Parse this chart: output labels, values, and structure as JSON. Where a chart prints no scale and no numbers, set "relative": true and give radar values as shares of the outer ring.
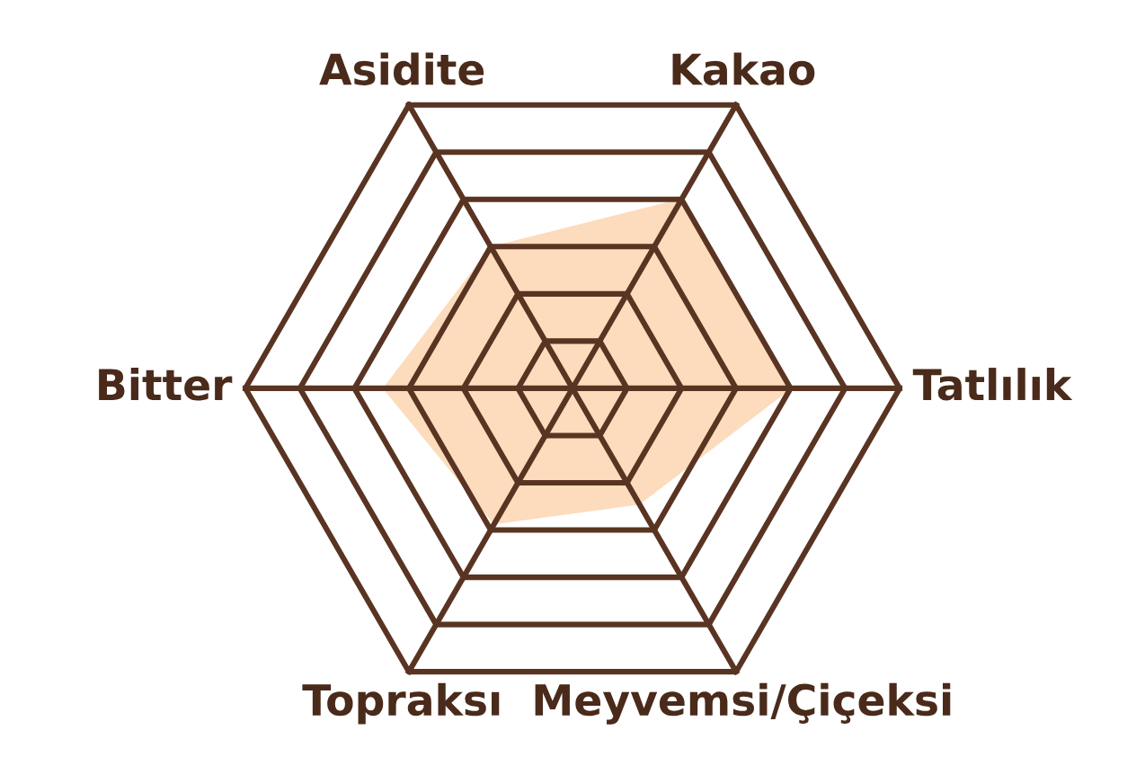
{
  "chart_data": {
    "type": "radar",
    "relative": true,
    "grid": true,
    "categories": [
      "Asidite",
      "Kakao",
      "Tatlılık",
      "Meyvemsi/Çiçeksi",
      "Topraksı",
      "Bitter"
    ],
    "series": [
      {
        "color": "#fcdcbc",
        "values": [
          0.5,
          0.67,
          0.67,
          0.41,
          0.48,
          0.58
        ]
      }
    ]
  }
}
